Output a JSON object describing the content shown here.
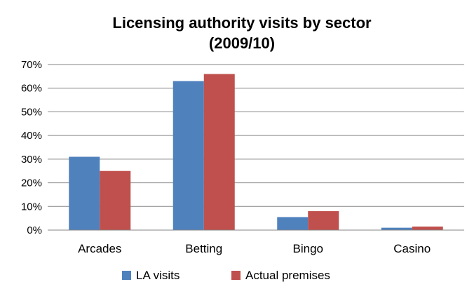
{
  "chart_data": {
    "type": "bar",
    "title": "Licensing authority visits by sector",
    "subtitle": "(2009/10)",
    "xlabel": "",
    "ylabel": "",
    "categories": [
      "Arcades",
      "Betting",
      "Bingo",
      "Casino"
    ],
    "y_ticks": [
      "0%",
      "10%",
      "20%",
      "30%",
      "40%",
      "50%",
      "60%",
      "70%"
    ],
    "ylim": [
      0,
      70
    ],
    "series": [
      {
        "name": "LA visits",
        "color": "#4f81bd",
        "values": [
          31,
          63,
          5.5,
          1
        ]
      },
      {
        "name": "Actual premises",
        "color": "#c0504d",
        "values": [
          25,
          66,
          8,
          1.5
        ]
      }
    ],
    "grid": true,
    "legend": "bottom"
  }
}
